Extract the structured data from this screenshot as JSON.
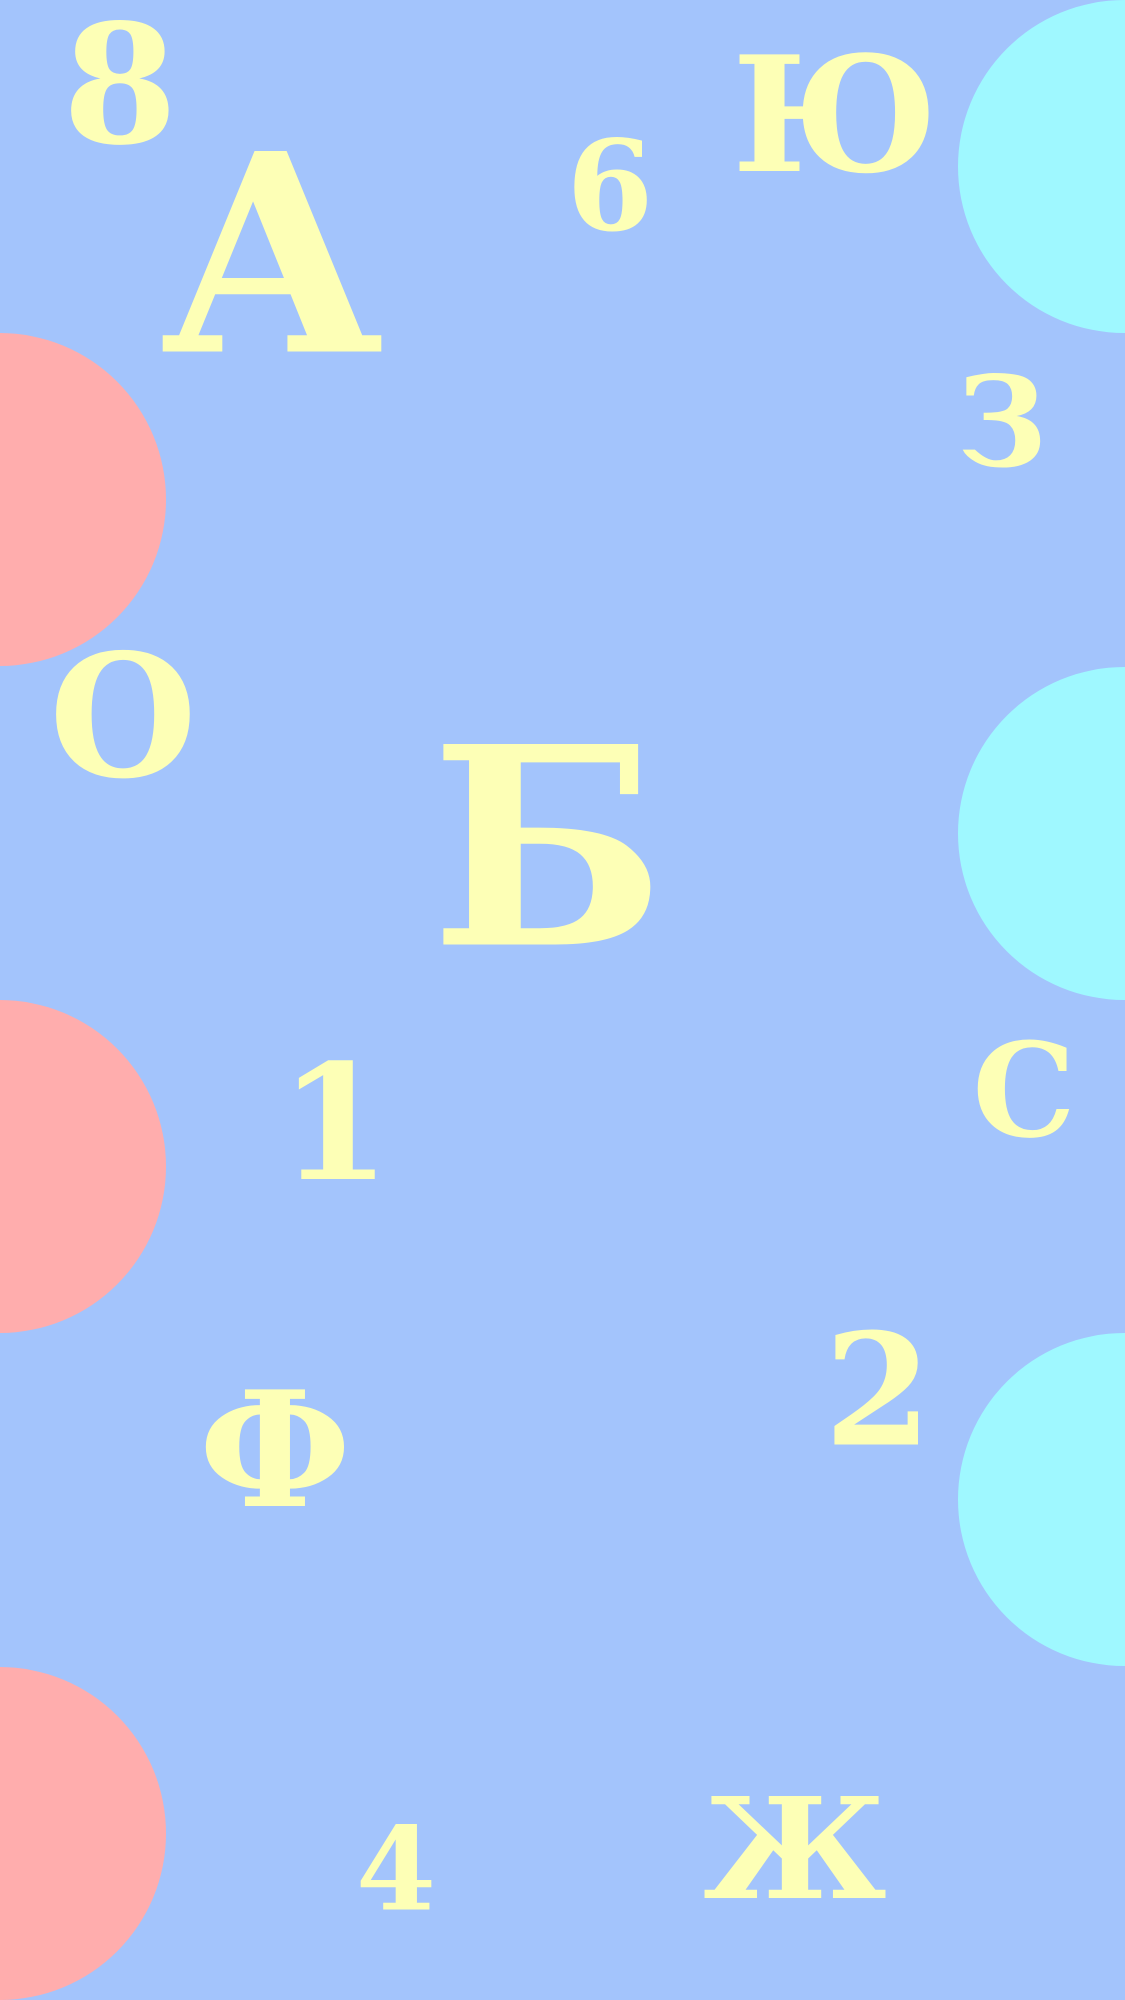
{
  "background_color": "#a3c4fc",
  "glyph_color": "#fdffb6",
  "circle_colors": {
    "left": "#ffadad",
    "right": "#9ff8ff"
  },
  "glyphs": [
    {
      "id": "glyph-8",
      "text": "8"
    },
    {
      "id": "glyph-a",
      "text": "А"
    },
    {
      "id": "glyph-6",
      "text": "6"
    },
    {
      "id": "glyph-yu",
      "text": "Ю"
    },
    {
      "id": "glyph-3",
      "text": "З"
    },
    {
      "id": "glyph-o",
      "text": "О"
    },
    {
      "id": "glyph-b",
      "text": "Б"
    },
    {
      "id": "glyph-1",
      "text": "1"
    },
    {
      "id": "glyph-s",
      "text": "С"
    },
    {
      "id": "glyph-2",
      "text": "2"
    },
    {
      "id": "glyph-f",
      "text": "Ф"
    },
    {
      "id": "glyph-4",
      "text": "4"
    },
    {
      "id": "glyph-zh",
      "text": "Ж"
    }
  ]
}
